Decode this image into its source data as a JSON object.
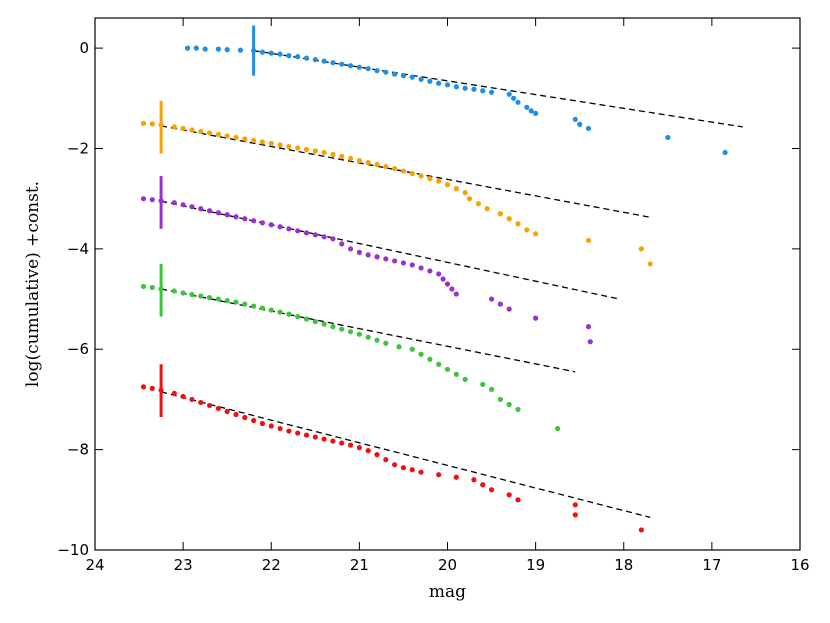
{
  "chart_data": {
    "type": "scatter",
    "title": "",
    "xlabel": "mag",
    "ylabel": "log(cumulative) +const.",
    "xlim": [
      24,
      16
    ],
    "ylim": [
      -10,
      0.6
    ],
    "x_ticks": [
      24,
      23,
      22,
      21,
      20,
      19,
      18,
      17,
      16
    ],
    "y_ticks": [
      0,
      -2,
      -4,
      -6,
      -8,
      -10
    ],
    "x_tick_labels": [
      "24",
      "23",
      "22",
      "21",
      "20",
      "19",
      "18",
      "17",
      "16"
    ],
    "y_tick_labels": [
      "0",
      "−2",
      "−4",
      "−6",
      "−8",
      "−10"
    ],
    "grid": false,
    "series": [
      {
        "color": "#1f8fe5",
        "points": [
          [
            22.95,
            0.0
          ],
          [
            22.85,
            0.0
          ],
          [
            22.75,
            -0.02
          ],
          [
            22.6,
            -0.02
          ],
          [
            22.5,
            -0.03
          ],
          [
            22.35,
            -0.04
          ],
          [
            22.2,
            -0.05
          ],
          [
            22.1,
            -0.08
          ],
          [
            22.0,
            -0.1
          ],
          [
            21.9,
            -0.12
          ],
          [
            21.8,
            -0.15
          ],
          [
            21.7,
            -0.17
          ],
          [
            21.6,
            -0.2
          ],
          [
            21.5,
            -0.23
          ],
          [
            21.4,
            -0.26
          ],
          [
            21.3,
            -0.29
          ],
          [
            21.2,
            -0.32
          ],
          [
            21.1,
            -0.35
          ],
          [
            21.0,
            -0.38
          ],
          [
            20.9,
            -0.41
          ],
          [
            20.8,
            -0.45
          ],
          [
            20.7,
            -0.48
          ],
          [
            20.6,
            -0.52
          ],
          [
            20.5,
            -0.55
          ],
          [
            20.4,
            -0.58
          ],
          [
            20.3,
            -0.62
          ],
          [
            20.2,
            -0.66
          ],
          [
            20.1,
            -0.7
          ],
          [
            20.0,
            -0.73
          ],
          [
            19.9,
            -0.77
          ],
          [
            19.8,
            -0.8
          ],
          [
            19.7,
            -0.82
          ],
          [
            19.6,
            -0.85
          ],
          [
            19.5,
            -0.88
          ],
          [
            19.3,
            -0.92
          ],
          [
            19.25,
            -1.0
          ],
          [
            19.2,
            -1.08
          ],
          [
            19.1,
            -1.18
          ],
          [
            19.05,
            -1.25
          ],
          [
            19.0,
            -1.3
          ],
          [
            18.55,
            -1.42
          ],
          [
            18.5,
            -1.52
          ],
          [
            18.4,
            -1.6
          ],
          [
            17.5,
            -1.78
          ],
          [
            16.85,
            -2.08
          ]
        ],
        "fit": {
          "x": [
            22.2,
            16.65
          ],
          "y": [
            -0.05,
            -1.57
          ]
        },
        "marker": {
          "x": 22.2,
          "y": [
            0.45,
            -0.55
          ]
        }
      },
      {
        "color": "#f5a300",
        "points": [
          [
            23.45,
            -1.5
          ],
          [
            23.35,
            -1.51
          ],
          [
            23.25,
            -1.53
          ],
          [
            23.1,
            -1.57
          ],
          [
            23.0,
            -1.6
          ],
          [
            22.9,
            -1.63
          ],
          [
            22.8,
            -1.66
          ],
          [
            22.7,
            -1.69
          ],
          [
            22.6,
            -1.72
          ],
          [
            22.5,
            -1.75
          ],
          [
            22.4,
            -1.78
          ],
          [
            22.3,
            -1.81
          ],
          [
            22.2,
            -1.84
          ],
          [
            22.1,
            -1.87
          ],
          [
            22.0,
            -1.9
          ],
          [
            21.9,
            -1.93
          ],
          [
            21.8,
            -1.96
          ],
          [
            21.7,
            -1.99
          ],
          [
            21.6,
            -2.02
          ],
          [
            21.5,
            -2.05
          ],
          [
            21.4,
            -2.08
          ],
          [
            21.3,
            -2.12
          ],
          [
            21.2,
            -2.16
          ],
          [
            21.1,
            -2.2
          ],
          [
            21.0,
            -2.24
          ],
          [
            20.9,
            -2.28
          ],
          [
            20.8,
            -2.32
          ],
          [
            20.7,
            -2.36
          ],
          [
            20.6,
            -2.4
          ],
          [
            20.5,
            -2.45
          ],
          [
            20.4,
            -2.5
          ],
          [
            20.3,
            -2.55
          ],
          [
            20.2,
            -2.6
          ],
          [
            20.1,
            -2.65
          ],
          [
            20.0,
            -2.72
          ],
          [
            19.9,
            -2.8
          ],
          [
            19.8,
            -2.88
          ],
          [
            19.75,
            -3.0
          ],
          [
            19.65,
            -3.1
          ],
          [
            19.55,
            -3.2
          ],
          [
            19.4,
            -3.3
          ],
          [
            19.3,
            -3.4
          ],
          [
            19.2,
            -3.5
          ],
          [
            19.1,
            -3.62
          ],
          [
            19.0,
            -3.7
          ],
          [
            18.4,
            -3.83
          ],
          [
            17.8,
            -4.0
          ],
          [
            17.7,
            -4.3
          ]
        ],
        "fit": {
          "x": [
            23.25,
            17.7
          ],
          "y": [
            -1.55,
            -3.37
          ]
        },
        "marker": {
          "x": 23.25,
          "y": [
            -1.05,
            -2.1
          ]
        }
      },
      {
        "color": "#9b30d0",
        "points": [
          [
            23.45,
            -3.0
          ],
          [
            23.35,
            -3.02
          ],
          [
            23.25,
            -3.04
          ],
          [
            23.1,
            -3.08
          ],
          [
            23.0,
            -3.12
          ],
          [
            22.9,
            -3.16
          ],
          [
            22.8,
            -3.2
          ],
          [
            22.7,
            -3.24
          ],
          [
            22.6,
            -3.28
          ],
          [
            22.5,
            -3.32
          ],
          [
            22.4,
            -3.36
          ],
          [
            22.3,
            -3.4
          ],
          [
            22.2,
            -3.44
          ],
          [
            22.1,
            -3.48
          ],
          [
            22.0,
            -3.52
          ],
          [
            21.9,
            -3.56
          ],
          [
            21.8,
            -3.6
          ],
          [
            21.7,
            -3.64
          ],
          [
            21.6,
            -3.68
          ],
          [
            21.5,
            -3.72
          ],
          [
            21.4,
            -3.76
          ],
          [
            21.3,
            -3.8
          ],
          [
            21.2,
            -3.9
          ],
          [
            21.1,
            -4.0
          ],
          [
            21.0,
            -4.07
          ],
          [
            20.9,
            -4.12
          ],
          [
            20.8,
            -4.16
          ],
          [
            20.7,
            -4.2
          ],
          [
            20.6,
            -4.24
          ],
          [
            20.5,
            -4.28
          ],
          [
            20.4,
            -4.32
          ],
          [
            20.3,
            -4.38
          ],
          [
            20.2,
            -4.44
          ],
          [
            20.1,
            -4.5
          ],
          [
            20.05,
            -4.6
          ],
          [
            20.0,
            -4.7
          ],
          [
            19.95,
            -4.8
          ],
          [
            19.9,
            -4.9
          ],
          [
            19.5,
            -5.0
          ],
          [
            19.4,
            -5.1
          ],
          [
            19.3,
            -5.2
          ],
          [
            19.0,
            -5.38
          ],
          [
            18.4,
            -5.55
          ],
          [
            18.38,
            -5.85
          ]
        ],
        "fit": {
          "x": [
            23.25,
            18.05
          ],
          "y": [
            -3.05,
            -5.0
          ]
        },
        "marker": {
          "x": 23.25,
          "y": [
            -2.55,
            -3.6
          ]
        }
      },
      {
        "color": "#3cc43c",
        "points": [
          [
            23.45,
            -4.75
          ],
          [
            23.35,
            -4.77
          ],
          [
            23.25,
            -4.8
          ],
          [
            23.1,
            -4.84
          ],
          [
            23.0,
            -4.88
          ],
          [
            22.9,
            -4.91
          ],
          [
            22.8,
            -4.94
          ],
          [
            22.7,
            -4.97
          ],
          [
            22.6,
            -5.0
          ],
          [
            22.5,
            -5.03
          ],
          [
            22.4,
            -5.06
          ],
          [
            22.3,
            -5.1
          ],
          [
            22.2,
            -5.14
          ],
          [
            22.1,
            -5.18
          ],
          [
            22.0,
            -5.22
          ],
          [
            21.9,
            -5.26
          ],
          [
            21.8,
            -5.3
          ],
          [
            21.7,
            -5.35
          ],
          [
            21.6,
            -5.4
          ],
          [
            21.5,
            -5.45
          ],
          [
            21.4,
            -5.5
          ],
          [
            21.3,
            -5.55
          ],
          [
            21.2,
            -5.6
          ],
          [
            21.1,
            -5.65
          ],
          [
            21.0,
            -5.7
          ],
          [
            20.9,
            -5.76
          ],
          [
            20.8,
            -5.82
          ],
          [
            20.7,
            -5.88
          ],
          [
            20.55,
            -5.95
          ],
          [
            20.4,
            -6.0
          ],
          [
            20.3,
            -6.1
          ],
          [
            20.2,
            -6.2
          ],
          [
            20.1,
            -6.3
          ],
          [
            20.0,
            -6.4
          ],
          [
            19.9,
            -6.5
          ],
          [
            19.8,
            -6.6
          ],
          [
            19.6,
            -6.7
          ],
          [
            19.5,
            -6.8
          ],
          [
            19.4,
            -7.0
          ],
          [
            19.3,
            -7.1
          ],
          [
            19.2,
            -7.2
          ],
          [
            18.75,
            -7.58
          ]
        ],
        "fit": {
          "x": [
            23.25,
            18.55
          ],
          "y": [
            -4.8,
            -6.45
          ]
        },
        "marker": {
          "x": 23.25,
          "y": [
            -4.3,
            -5.35
          ]
        }
      },
      {
        "color": "#ee1111",
        "points": [
          [
            23.45,
            -6.75
          ],
          [
            23.35,
            -6.78
          ],
          [
            23.25,
            -6.82
          ],
          [
            23.1,
            -6.88
          ],
          [
            23.0,
            -6.94
          ],
          [
            22.9,
            -7.0
          ],
          [
            22.8,
            -7.06
          ],
          [
            22.7,
            -7.12
          ],
          [
            22.6,
            -7.18
          ],
          [
            22.5,
            -7.24
          ],
          [
            22.4,
            -7.3
          ],
          [
            22.3,
            -7.36
          ],
          [
            22.2,
            -7.42
          ],
          [
            22.1,
            -7.48
          ],
          [
            22.0,
            -7.53
          ],
          [
            21.9,
            -7.58
          ],
          [
            21.8,
            -7.63
          ],
          [
            21.7,
            -7.67
          ],
          [
            21.6,
            -7.71
          ],
          [
            21.5,
            -7.75
          ],
          [
            21.4,
            -7.79
          ],
          [
            21.3,
            -7.83
          ],
          [
            21.2,
            -7.87
          ],
          [
            21.1,
            -7.91
          ],
          [
            21.0,
            -7.96
          ],
          [
            20.9,
            -8.02
          ],
          [
            20.8,
            -8.1
          ],
          [
            20.7,
            -8.2
          ],
          [
            20.6,
            -8.3
          ],
          [
            20.5,
            -8.36
          ],
          [
            20.4,
            -8.4
          ],
          [
            20.3,
            -8.45
          ],
          [
            20.1,
            -8.5
          ],
          [
            19.9,
            -8.55
          ],
          [
            19.7,
            -8.6
          ],
          [
            19.6,
            -8.7
          ],
          [
            19.5,
            -8.8
          ],
          [
            19.3,
            -8.9
          ],
          [
            19.2,
            -9.0
          ],
          [
            18.55,
            -9.1
          ],
          [
            18.55,
            -9.3
          ],
          [
            17.8,
            -9.6
          ]
        ],
        "fit": {
          "x": [
            23.25,
            17.7
          ],
          "y": [
            -6.85,
            -9.35
          ]
        },
        "marker": {
          "x": 23.25,
          "y": [
            -6.3,
            -7.35
          ]
        }
      }
    ]
  }
}
